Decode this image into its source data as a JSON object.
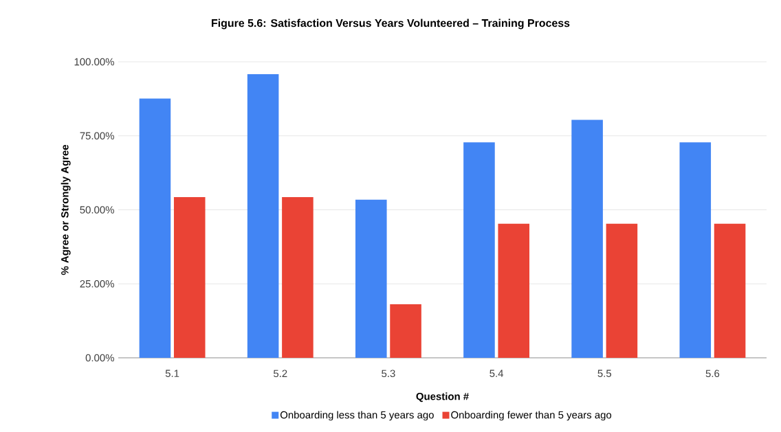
{
  "chart_data": {
    "type": "bar",
    "title": "Figure 5.6: Satisfaction Versus Years Volunteered – Training Process",
    "xlabel": "Question #",
    "ylabel": "% Agree or Strongly Agree",
    "categories": [
      "5.1",
      "5.2",
      "5.3",
      "5.4",
      "5.5",
      "5.6"
    ],
    "series": [
      {
        "name": "Onboarding less than 5 years ago",
        "color": "#4285f4",
        "values": [
          87.6,
          95.8,
          53.4,
          72.8,
          80.4,
          72.8
        ]
      },
      {
        "name": "Onboarding fewer than 5 years ago",
        "color": "#ea4335",
        "values": [
          54.3,
          54.3,
          18.1,
          45.3,
          45.3,
          45.3
        ]
      }
    ],
    "ylim": [
      0,
      100
    ],
    "yticks": [
      {
        "value": 0,
        "label": "0.00%"
      },
      {
        "value": 25,
        "label": "25.00%"
      },
      {
        "value": 50,
        "label": "50.00%"
      },
      {
        "value": 75,
        "label": "75.00%"
      },
      {
        "value": 100,
        "label": "100.00%"
      }
    ],
    "grid": "y",
    "legend": "bottom"
  }
}
